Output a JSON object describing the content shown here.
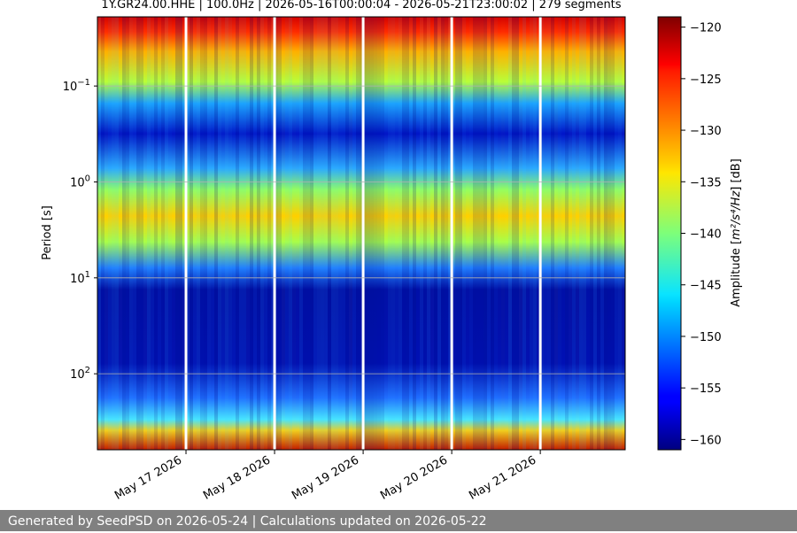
{
  "chart_data": {
    "type": "heatmap",
    "title": "1Y.GR24.00.HHE | 100.0Hz | 2026-05-16T00:00:04 - 2026-05-21T23:00:02 | 279 segments",
    "xlabel": "",
    "ylabel": "Period [s]",
    "y_scale": "log",
    "ylim": [
      620,
      0.019
    ],
    "y_tick_labels": [
      {
        "label": "10",
        "exp": "−1",
        "value": 0.1
      },
      {
        "label": "10",
        "exp": "0",
        "value": 1
      },
      {
        "label": "10",
        "exp": "1",
        "value": 10
      },
      {
        "label": "10",
        "exp": "2",
        "value": 100
      }
    ],
    "x_tick_labels": [
      "May 17 2026",
      "May 18 2026",
      "May 19 2026",
      "May 20 2026",
      "May 21 2026"
    ],
    "x_range": [
      "2026-05-16T00:00:04",
      "2026-05-21T23:00:02"
    ],
    "data_gaps": [
      "2026-05-17T00:00",
      "2026-05-18T00:00",
      "2026-05-19T00:00",
      "2026-05-20T00:00",
      "2026-05-21T00:00"
    ],
    "grid": true,
    "colormap": "jet",
    "colorbar": {
      "label_prefix": "Amplitude [",
      "label_unit": "m²/s⁴/Hz",
      "label_suffix": "] [dB]",
      "min": -161,
      "max": -119,
      "ticks": [
        "−120",
        "−125",
        "−130",
        "−135",
        "−140",
        "−145",
        "−150",
        "−155",
        "−160"
      ]
    },
    "period_profile_db": [
      {
        "period": 0.02,
        "db": -121
      },
      {
        "period": 0.05,
        "db": -133
      },
      {
        "period": 0.1,
        "db": -140
      },
      {
        "period": 0.3,
        "db": -154
      },
      {
        "period": 1,
        "db": -142
      },
      {
        "period": 3,
        "db": -128
      },
      {
        "period": 8,
        "db": -146
      },
      {
        "period": 15,
        "db": -156
      },
      {
        "period": 50,
        "db": -157
      },
      {
        "period": 100,
        "db": -152
      },
      {
        "period": 250,
        "db": -141
      },
      {
        "period": 600,
        "db": -129
      }
    ]
  },
  "footer": {
    "text": "Generated by SeedPSD on 2026-05-24 | Calculations updated on 2026-05-22"
  }
}
